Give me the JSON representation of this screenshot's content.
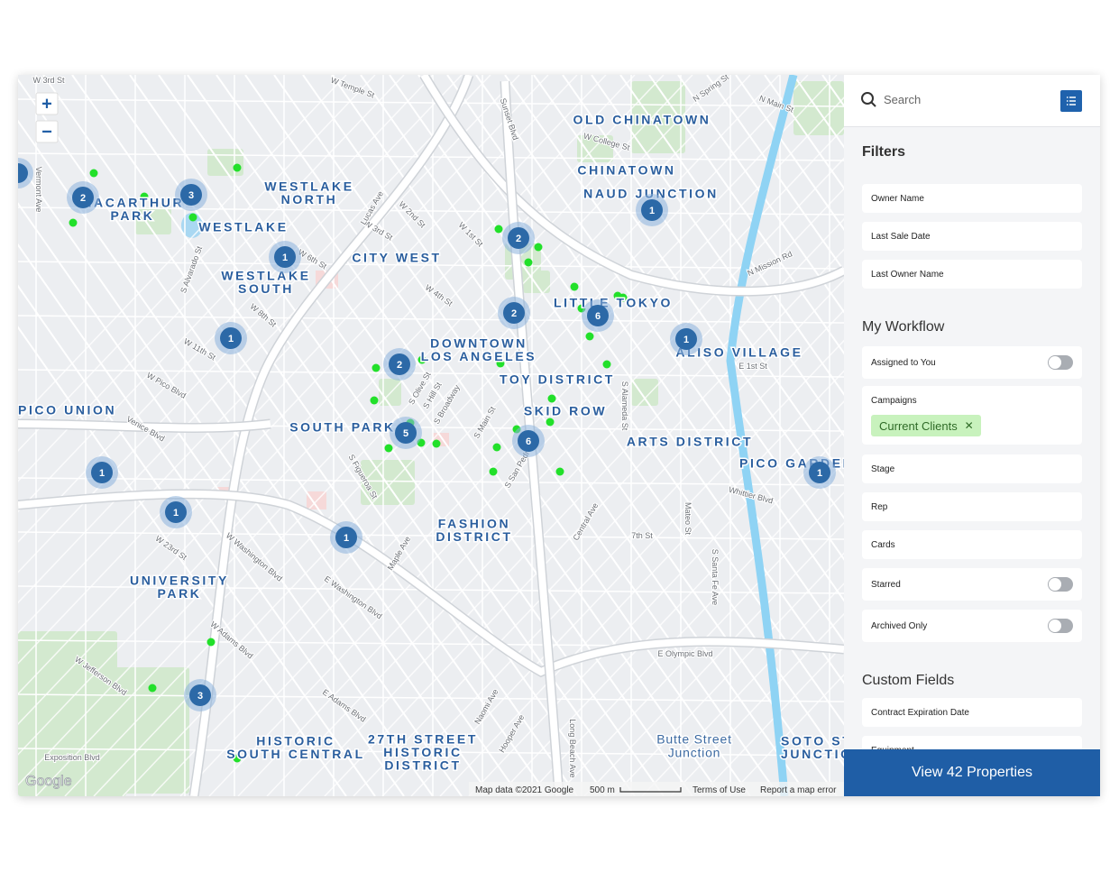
{
  "map": {
    "zoom_in": "+",
    "zoom_out": "−",
    "neighborhoods": [
      {
        "lines": [
          "OLD CHINATOWN"
        ]
      },
      {
        "lines": [
          "CHINATOWN"
        ]
      },
      {
        "lines": [
          "NAUD JUNCTION"
        ]
      },
      {
        "lines": [
          "WESTLAKE",
          "NORTH"
        ]
      },
      {
        "lines": [
          "MACARTHUR",
          "PARK"
        ]
      },
      {
        "lines": [
          "WESTLAKE"
        ]
      },
      {
        "lines": [
          "CITY WEST"
        ]
      },
      {
        "lines": [
          "WESTLAKE",
          "SOUTH"
        ]
      },
      {
        "lines": [
          "LITTLE TOKYO"
        ]
      },
      {
        "lines": [
          "DOWNTOWN",
          "LOS ANGELES"
        ]
      },
      {
        "lines": [
          "ALISO VILLAGE"
        ]
      },
      {
        "lines": [
          "TOY DISTRICT"
        ]
      },
      {
        "lines": [
          "PICO UNION"
        ]
      },
      {
        "lines": [
          "SKID ROW"
        ]
      },
      {
        "lines": [
          "SOUTH PARK"
        ]
      },
      {
        "lines": [
          "ARTS DISTRICT"
        ]
      },
      {
        "lines": [
          "PICO GARDENS"
        ]
      },
      {
        "lines": [
          "FASHION",
          "DISTRICT"
        ]
      },
      {
        "lines": [
          "UNIVERSITY",
          "PARK"
        ]
      },
      {
        "lines": [
          "HISTORIC",
          "SOUTH CENTRAL"
        ]
      },
      {
        "lines": [
          "27TH STREET",
          "HISTORIC",
          "DISTRICT"
        ]
      },
      {
        "lines": [
          "SOTO STREET",
          "JUNCTION"
        ]
      }
    ],
    "places": [
      {
        "lines": [
          "Butte Street",
          "Junction"
        ]
      }
    ],
    "clusters": [
      2,
      3,
      1,
      1,
      2,
      2,
      6,
      1,
      1,
      2,
      5,
      6,
      1,
      1,
      1,
      1,
      3
    ],
    "streets": [
      "W 3rd St",
      "W Temple St",
      "Sunset Blvd",
      "W College St",
      "N Main St",
      "N Spring St",
      "W 6th St",
      "W 3rd St",
      "W 2nd St",
      "W 1st St",
      "W 4th St",
      "W 8th St",
      "W 11th St",
      "W Pico Blvd",
      "Venice Blvd",
      "S Alvarado St",
      "W 23rd St",
      "W Adams Blvd",
      "W Jefferson Blvd",
      "W Washington Blvd",
      "E Washington Blvd",
      "E Adams Blvd",
      "E Olympic Blvd",
      "Whittier Blvd",
      "7th St",
      "N Mission Rd",
      "E 1st St",
      "S Alameda St",
      "Mateo St",
      "S Santa Fe Ave",
      "Vermont Ave",
      "Exposition Blvd",
      "S Figueroa St",
      "Maple Ave",
      "S San Pedro St",
      "Central Ave",
      "S Main St",
      "S Broadway",
      "S Hill St",
      "S Olive St",
      "Lucas Ave",
      "Long Beach Ave",
      "Naomi Ave",
      "Hooper Ave"
    ],
    "attribution": {
      "logo": "Google",
      "data": "Map data ©2021 Google",
      "scale": "500 m",
      "terms": "Terms of Use",
      "report": "Report a map error"
    }
  },
  "sidebar": {
    "search_placeholder": "Search",
    "filters": {
      "title": "Filters",
      "fields": [
        "Owner Name",
        "Last Sale Date",
        "Last Owner Name"
      ]
    },
    "workflow": {
      "title": "My Workflow",
      "items": [
        {
          "label": "Assigned to You",
          "toggle": true
        },
        {
          "label": "Campaigns",
          "chips": [
            "Current Clients"
          ]
        },
        {
          "label": "Stage"
        },
        {
          "label": "Rep"
        },
        {
          "label": "Cards"
        },
        {
          "label": "Starred",
          "toggle": true
        },
        {
          "label": "Archived Only",
          "toggle": true
        }
      ]
    },
    "custom_fields": {
      "title": "Custom Fields",
      "fields": [
        "Contract Expiration Date",
        "Equipment"
      ]
    },
    "button": "View 42 Properties"
  }
}
